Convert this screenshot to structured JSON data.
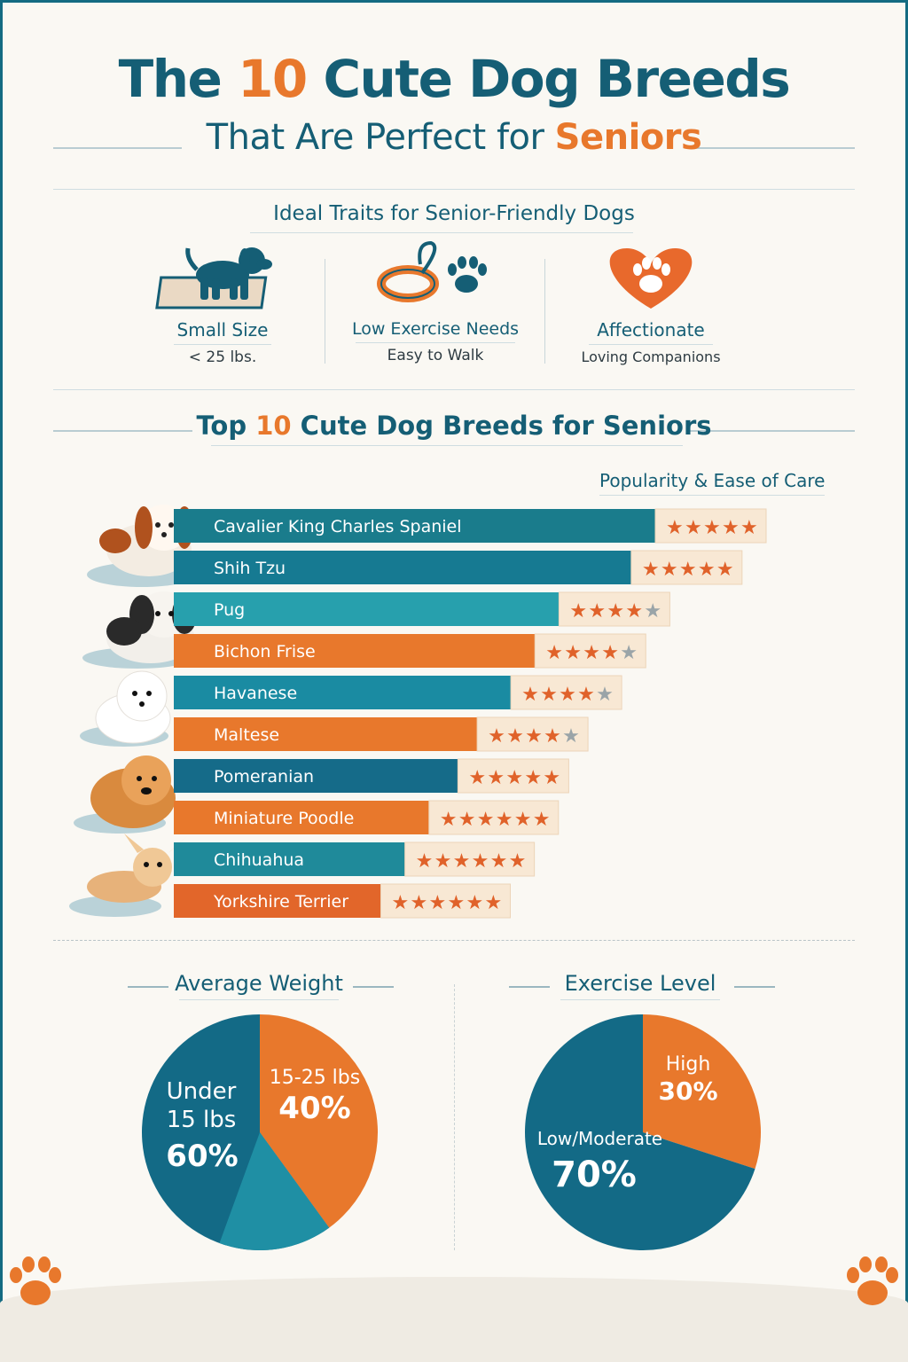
{
  "header": {
    "title_pre": "The",
    "title_num": "10",
    "title_post": "Cute Dog Breeds",
    "subtitle_pre": "That Are Perfect for",
    "subtitle_accent": "Seniors"
  },
  "traits": {
    "title": "Ideal Traits for Senior-Friendly Dogs",
    "items": [
      {
        "label": "Small Size",
        "sub": "< 25 lbs.",
        "icon": "dog-icon"
      },
      {
        "label": "Low Exercise Needs",
        "sub": "Easy to Walk",
        "icon": "leash-paw-icon"
      },
      {
        "label": "Affectionate",
        "sub": "Loving Companions",
        "icon": "heart-paw-icon"
      }
    ]
  },
  "chart_data": [
    {
      "type": "bar",
      "title_pre": "Top",
      "title_num": "10",
      "title_post": "Cute Dog Breeds for Seniors",
      "legend_label": "Popularity & Ease of Care",
      "categories": [
        "Cavalier King Charles Spaniel",
        "Shih Tzu",
        "Pug",
        "Bichon Frise",
        "Havanese",
        "Maltese",
        "Pomeranian",
        "Miniature Poodle",
        "Chihuahua",
        "Yorkshire Terrier"
      ],
      "values": [
        100,
        95,
        80,
        75,
        70,
        63,
        59,
        53,
        48,
        43
      ],
      "ratings": [
        5,
        5,
        4,
        4,
        4,
        4,
        5,
        6,
        6,
        6
      ],
      "ratings_max": [
        5,
        5,
        5,
        5,
        5,
        5,
        5,
        6,
        6,
        6
      ],
      "bar_colors": [
        "#1a7c8c",
        "#167a92",
        "#27a0ad",
        "#e8782c",
        "#1a8ba2",
        "#e8782c",
        "#156b89",
        "#e8782c",
        "#1f8a9a",
        "#e2662a"
      ]
    },
    {
      "type": "pie",
      "title": "Average Weight",
      "slices": [
        {
          "label": "Under 15 lbs",
          "value": 60,
          "display": "60%"
        },
        {
          "label": "15-25 lbs",
          "value": 40,
          "display": "40%"
        }
      ]
    },
    {
      "type": "pie",
      "title": "Exercise Level",
      "slices": [
        {
          "label": "Low/Moderate",
          "value": 70,
          "display": "70%"
        },
        {
          "label": "High",
          "value": 30,
          "display": "30%"
        }
      ]
    }
  ],
  "colors": {
    "teal_dark": "#136a86",
    "teal": "#1f8fa4",
    "orange": "#e8782c",
    "star_on": "#e0622a",
    "star_off": "#9aa4a8",
    "rating_bg": "#f8e8d4"
  },
  "decor": {
    "paw_left": "paw-icon",
    "paw_right": "paw-icon"
  }
}
